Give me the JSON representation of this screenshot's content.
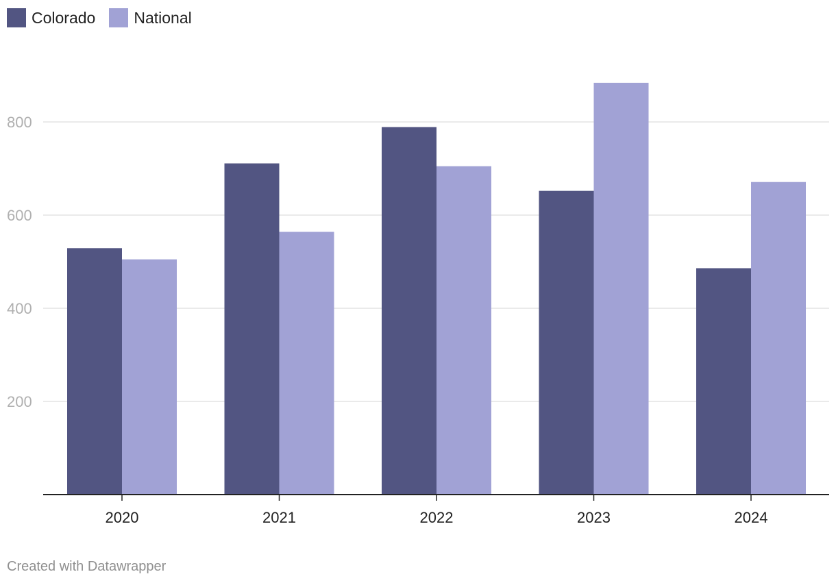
{
  "colors": {
    "colorado": "#525582",
    "national": "#a1a2d5",
    "grid": "#e3e3e3",
    "axis": "#222222"
  },
  "legend": {
    "colorado_label": "Colorado",
    "national_label": "National"
  },
  "footer": {
    "credit": "Created with Datawrapper"
  },
  "chart_data": {
    "type": "bar",
    "title": "",
    "xlabel": "",
    "ylabel": "",
    "categories": [
      "2020",
      "2021",
      "2022",
      "2023",
      "2024"
    ],
    "series": [
      {
        "name": "Colorado",
        "values": [
          529,
          711,
          789,
          652,
          486
        ]
      },
      {
        "name": "National",
        "values": [
          505,
          564,
          705,
          884,
          671
        ]
      }
    ],
    "yticks": [
      200,
      400,
      600,
      800
    ],
    "ytick_labels": [
      "200",
      "400",
      "600",
      "800"
    ],
    "ylim": [
      0,
      960
    ],
    "grid": true,
    "legend_position": "top-left"
  }
}
